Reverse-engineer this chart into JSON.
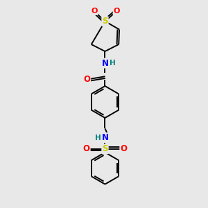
{
  "bg_color": "#e8e8e8",
  "bond_color": "#000000",
  "atom_colors": {
    "S": "#cccc00",
    "O": "#ff0000",
    "N": "#0000ff",
    "H": "#008080",
    "C": "#000000"
  },
  "line_width": 1.4,
  "font_size": 8.5,
  "xlim": [
    0,
    10
  ],
  "ylim": [
    0,
    10
  ]
}
